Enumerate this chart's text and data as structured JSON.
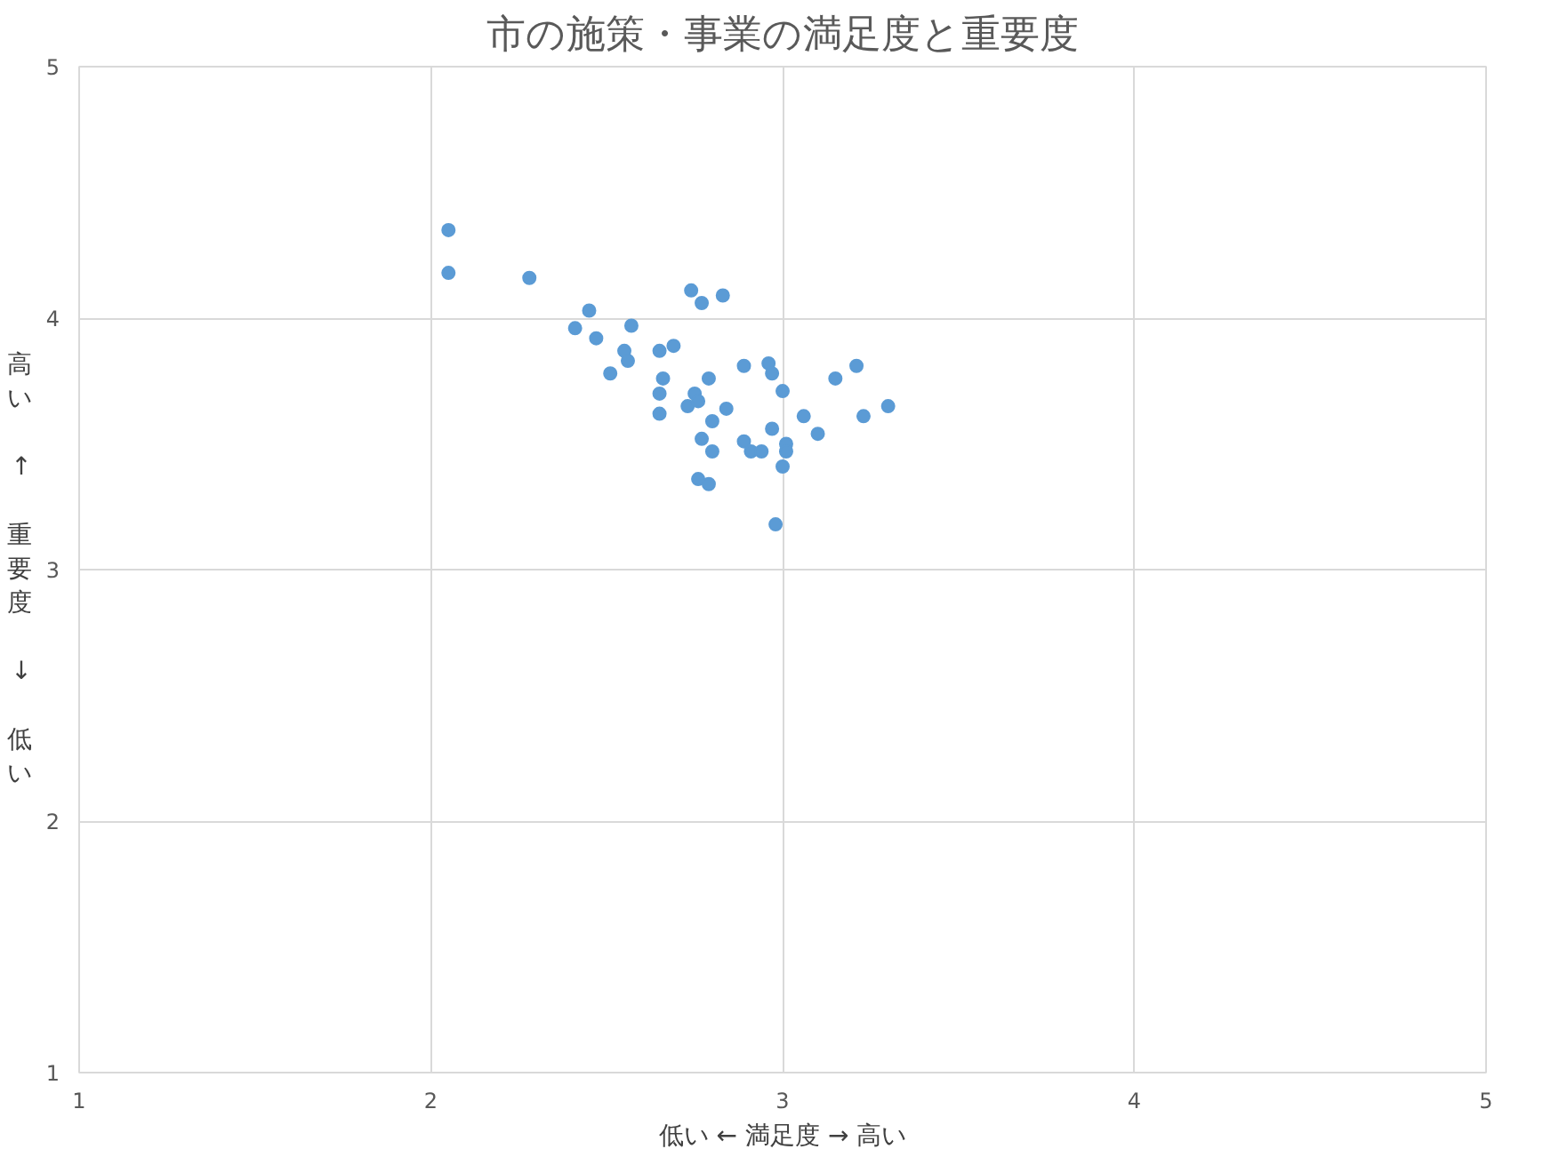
{
  "chart_data": {
    "type": "scatter",
    "title": "市の施策・事業の満足度と重要度",
    "xlabel": "低い ← 満足度 → 高い",
    "ylabel": "高い ↑ 重要度 ↓ 低い",
    "x": [
      2.05,
      2.05,
      2.28,
      2.74,
      2.77,
      2.83,
      2.45,
      2.41,
      2.47,
      2.57,
      2.55,
      2.56,
      2.51,
      2.65,
      2.69,
      2.66,
      2.65,
      2.65,
      2.79,
      2.75,
      2.73,
      2.76,
      2.84,
      2.8,
      2.77,
      2.8,
      2.76,
      2.79,
      2.89,
      2.96,
      2.97,
      3.0,
      2.97,
      2.89,
      2.91,
      2.94,
      3.01,
      3.01,
      3.0,
      3.06,
      3.1,
      2.98,
      3.15,
      3.21,
      3.23,
      3.3
    ],
    "values": [
      4.35,
      4.18,
      4.16,
      4.11,
      4.06,
      4.09,
      4.03,
      3.96,
      3.92,
      3.97,
      3.87,
      3.83,
      3.78,
      3.87,
      3.89,
      3.76,
      3.7,
      3.62,
      3.76,
      3.7,
      3.65,
      3.67,
      3.64,
      3.59,
      3.52,
      3.47,
      3.36,
      3.34,
      3.81,
      3.82,
      3.78,
      3.71,
      3.56,
      3.51,
      3.47,
      3.47,
      3.5,
      3.47,
      3.41,
      3.61,
      3.54,
      3.18,
      3.76,
      3.81,
      3.61,
      3.65
    ],
    "color": "#5b9bd5",
    "marker": "circle",
    "xlim": [
      1,
      5
    ],
    "ylim": [
      1,
      5
    ],
    "xticks": [
      1,
      2,
      3,
      4,
      5
    ],
    "yticks": [
      1,
      2,
      3,
      4,
      5
    ],
    "grid": true
  }
}
